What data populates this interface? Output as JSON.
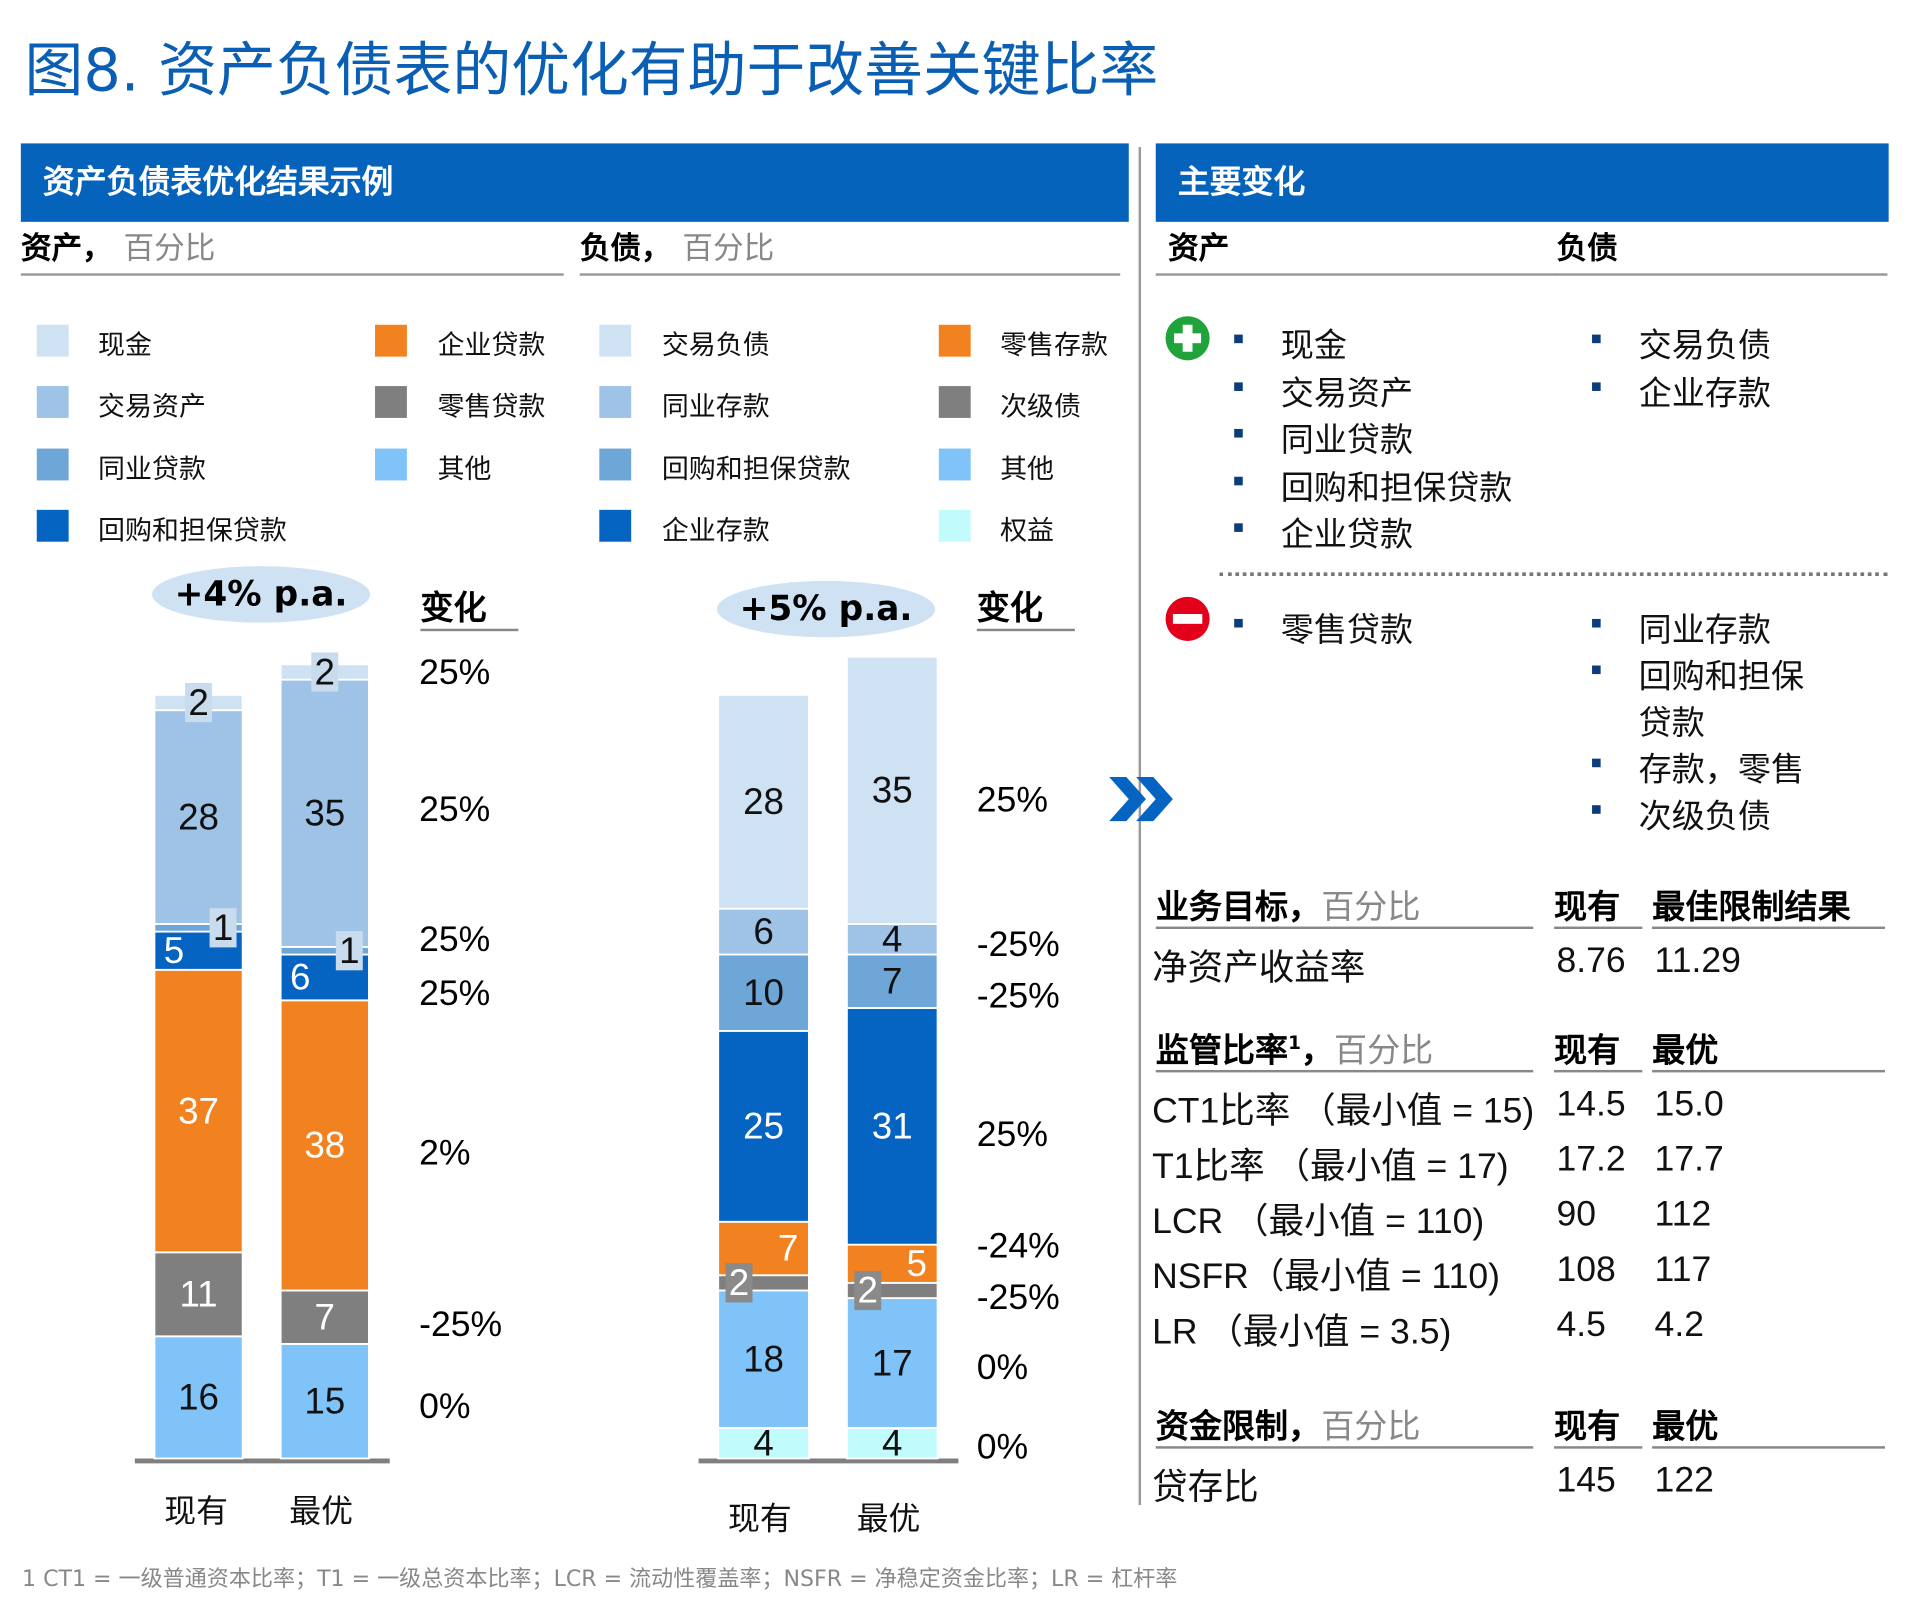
{
  "title": "图8. 资产负债表的优化有助于改善关键比率",
  "left_panel": {
    "header": "资产负债表优化结果示例",
    "assets_label": "资产，",
    "assets_unit": "百分比",
    "liab_label": "负债，",
    "liab_unit": "百分比"
  },
  "legend_assets": [
    {
      "label": "现金",
      "color": "#cfe2f3"
    },
    {
      "label": "交易资产",
      "color": "#9ec3e6"
    },
    {
      "label": "同业贷款",
      "color": "#6fa6d8"
    },
    {
      "label": "回购和担保贷款",
      "color": "#0563c1"
    },
    {
      "label": "企业贷款",
      "color": "#f28120"
    },
    {
      "label": "零售贷款",
      "color": "#7f7f7f"
    },
    {
      "label": "其他",
      "color": "#7fc3f9"
    }
  ],
  "legend_liab": [
    {
      "label": "交易负债",
      "color": "#cfe2f3"
    },
    {
      "label": "同业存款",
      "color": "#9ec3e6"
    },
    {
      "label": "回购和担保贷款",
      "color": "#6fa6d8"
    },
    {
      "label": "企业存款",
      "color": "#0563c1"
    },
    {
      "label": "零售存款",
      "color": "#f28120"
    },
    {
      "label": "次级债",
      "color": "#7f7f7f"
    },
    {
      "label": "其他",
      "color": "#7fc3f9"
    },
    {
      "label": "权益",
      "color": "#c2fbfb"
    }
  ],
  "chart_data": [
    {
      "type": "bar",
      "stacked": true,
      "categories": [
        "现有",
        "最优"
      ],
      "growth_label": "+4% p.a.",
      "change_header": "变化",
      "series": [
        {
          "name": "其他",
          "values": [
            16,
            15
          ],
          "change": "0%"
        },
        {
          "name": "零售贷款",
          "values": [
            11,
            7
          ],
          "change": "-25%"
        },
        {
          "name": "企业贷款",
          "values": [
            37,
            38
          ],
          "change": "2%"
        },
        {
          "name": "回购和担保贷款",
          "values": [
            5,
            6
          ],
          "change": "25%"
        },
        {
          "name": "同业贷款",
          "values": [
            1,
            1
          ],
          "change": "25%"
        },
        {
          "name": "交易资产",
          "values": [
            28,
            35
          ],
          "change": "25%"
        },
        {
          "name": "现金",
          "values": [
            2,
            2
          ],
          "change": "25%"
        }
      ]
    },
    {
      "type": "bar",
      "stacked": true,
      "categories": [
        "现有",
        "最优"
      ],
      "growth_label": "+5% p.a.",
      "change_header": "变化",
      "series": [
        {
          "name": "权益",
          "values": [
            4,
            4
          ],
          "change": "0%"
        },
        {
          "name": "其他",
          "values": [
            18,
            17
          ],
          "change": "0%"
        },
        {
          "name": "次级债",
          "values": [
            2,
            2
          ],
          "change": "-25%"
        },
        {
          "name": "零售存款",
          "values": [
            7,
            5
          ],
          "change": "-24%"
        },
        {
          "name": "企业存款",
          "values": [
            25,
            31
          ],
          "change": "25%"
        },
        {
          "name": "回购和担保贷款",
          "values": [
            10,
            7
          ],
          "change": "-25%"
        },
        {
          "name": "同业存款",
          "values": [
            6,
            4
          ],
          "change": "-25%"
        },
        {
          "name": "交易负债",
          "values": [
            28,
            35
          ],
          "change": "25%"
        }
      ]
    }
  ],
  "right_panel": {
    "header": "主要变化",
    "assets": "资产",
    "liab": "负债",
    "plus_assets": [
      "现金",
      "交易资产",
      "同业贷款",
      "回购和担保贷款",
      "企业贷款"
    ],
    "plus_liab": [
      "交易负债",
      "企业存款"
    ],
    "minus_assets": [
      "零售贷款"
    ],
    "minus_liab": [
      "同业存款",
      "回购和担保",
      "贷款",
      "存款，零售",
      "次级负债"
    ],
    "biz": {
      "h": "业务目标，",
      "u": "百分比",
      "c1": "现有",
      "c2": "最佳限制结果",
      "rows": [
        [
          "净资产收益率",
          "8.76",
          "11.29"
        ]
      ]
    },
    "reg": {
      "h": "监管比率",
      "sup": "1",
      "comma": "，",
      "u": "百分比",
      "c1": "现有",
      "c2": "最优",
      "rows": [
        [
          "CT1比率 （最小值 = 15)",
          "14.5",
          "15.0"
        ],
        [
          "T1比率 （最小值 = 17)",
          "17.2",
          "17.7"
        ],
        [
          "LCR （最小值 = 110)",
          "90",
          "112"
        ],
        [
          "NSFR（最小值 = 110)",
          "108",
          "117"
        ],
        [
          "LR （最小值 = 3.5)",
          "4.5",
          "4.2"
        ]
      ]
    },
    "fund": {
      "h": "资金限制，",
      "u": "百分比",
      "c1": "现有",
      "c2": "最优",
      "rows": [
        [
          "贷存比",
          "145",
          "122"
        ]
      ]
    }
  },
  "footnote": "1 CT1 = 一级普通资本比率；T1 = 一级总资本比率；LCR = 流动性覆盖率；NSFR = 净稳定资金比率；LR = 杠杆率"
}
